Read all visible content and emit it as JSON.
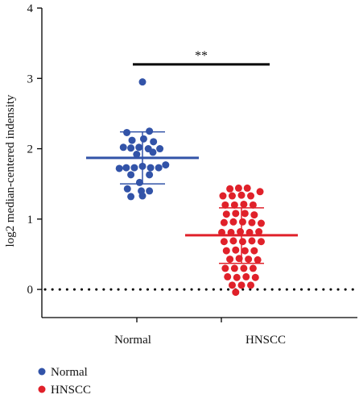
{
  "chart_data": {
    "type": "scatter",
    "ylabel": "log2 median-centered indensity",
    "ylim": [
      -0.4,
      4
    ],
    "yticks": [
      0,
      1,
      2,
      3,
      4
    ],
    "categories": [
      "Normal",
      "HNSCC"
    ],
    "reference_line": 0,
    "significance": {
      "label": "**",
      "between": [
        "Normal",
        "HNSCC"
      ],
      "y": 3.2
    },
    "legend": {
      "placement": "bottom-left",
      "items": [
        "Normal",
        "HNSCC"
      ]
    },
    "colors": {
      "Normal": "#3253a8",
      "HNSCC": "#e0212a",
      "axis": "#000000"
    },
    "series": [
      {
        "name": "Normal",
        "mean": 1.87,
        "sd_low": 1.5,
        "sd_high": 2.24,
        "points": [
          {
            "x": 0.0,
            "y": 2.95
          },
          {
            "x": -0.27,
            "y": 2.23
          },
          {
            "x": 0.12,
            "y": 2.25
          },
          {
            "x": -0.18,
            "y": 2.12
          },
          {
            "x": 0.02,
            "y": 2.14
          },
          {
            "x": 0.19,
            "y": 2.1
          },
          {
            "x": -0.33,
            "y": 2.02
          },
          {
            "x": -0.2,
            "y": 2.01
          },
          {
            "x": -0.06,
            "y": 2.02
          },
          {
            "x": 0.1,
            "y": 2.0
          },
          {
            "x": 0.3,
            "y": 2.0
          },
          {
            "x": -0.1,
            "y": 1.92
          },
          {
            "x": 0.18,
            "y": 1.95
          },
          {
            "x": -0.4,
            "y": 1.72
          },
          {
            "x": -0.28,
            "y": 1.73
          },
          {
            "x": -0.14,
            "y": 1.73
          },
          {
            "x": 0.0,
            "y": 1.75
          },
          {
            "x": 0.14,
            "y": 1.73
          },
          {
            "x": 0.28,
            "y": 1.73
          },
          {
            "x": 0.4,
            "y": 1.77
          },
          {
            "x": -0.2,
            "y": 1.63
          },
          {
            "x": 0.12,
            "y": 1.63
          },
          {
            "x": -0.05,
            "y": 1.52
          },
          {
            "x": -0.26,
            "y": 1.43
          },
          {
            "x": -0.02,
            "y": 1.4
          },
          {
            "x": 0.12,
            "y": 1.4
          },
          {
            "x": -0.2,
            "y": 1.32
          },
          {
            "x": 0.0,
            "y": 1.33
          }
        ]
      },
      {
        "name": "HNSCC",
        "mean": 0.77,
        "sd_low": 0.37,
        "sd_high": 1.16,
        "points": [
          {
            "x": -0.2,
            "y": 1.43
          },
          {
            "x": -0.05,
            "y": 1.44
          },
          {
            "x": 0.1,
            "y": 1.44
          },
          {
            "x": 0.32,
            "y": 1.39
          },
          {
            "x": -0.32,
            "y": 1.33
          },
          {
            "x": -0.16,
            "y": 1.33
          },
          {
            "x": 0.0,
            "y": 1.34
          },
          {
            "x": 0.16,
            "y": 1.33
          },
          {
            "x": -0.28,
            "y": 1.2
          },
          {
            "x": -0.12,
            "y": 1.2
          },
          {
            "x": 0.04,
            "y": 1.21
          },
          {
            "x": 0.2,
            "y": 1.2
          },
          {
            "x": -0.26,
            "y": 1.07
          },
          {
            "x": -0.1,
            "y": 1.08
          },
          {
            "x": 0.06,
            "y": 1.08
          },
          {
            "x": 0.22,
            "y": 1.06
          },
          {
            "x": -0.3,
            "y": 0.95
          },
          {
            "x": -0.14,
            "y": 0.96
          },
          {
            "x": 0.02,
            "y": 0.96
          },
          {
            "x": 0.18,
            "y": 0.95
          },
          {
            "x": 0.34,
            "y": 0.94
          },
          {
            "x": -0.34,
            "y": 0.81
          },
          {
            "x": -0.18,
            "y": 0.81
          },
          {
            "x": -0.02,
            "y": 0.82
          },
          {
            "x": 0.14,
            "y": 0.81
          },
          {
            "x": 0.3,
            "y": 0.82
          },
          {
            "x": -0.3,
            "y": 0.68
          },
          {
            "x": -0.14,
            "y": 0.69
          },
          {
            "x": 0.02,
            "y": 0.68
          },
          {
            "x": 0.18,
            "y": 0.69
          },
          {
            "x": 0.34,
            "y": 0.68
          },
          {
            "x": -0.26,
            "y": 0.55
          },
          {
            "x": -0.1,
            "y": 0.56
          },
          {
            "x": 0.06,
            "y": 0.55
          },
          {
            "x": 0.22,
            "y": 0.55
          },
          {
            "x": -0.2,
            "y": 0.43
          },
          {
            "x": -0.04,
            "y": 0.44
          },
          {
            "x": 0.12,
            "y": 0.43
          },
          {
            "x": 0.28,
            "y": 0.42
          },
          {
            "x": -0.28,
            "y": 0.3
          },
          {
            "x": -0.12,
            "y": 0.3
          },
          {
            "x": 0.04,
            "y": 0.3
          },
          {
            "x": 0.2,
            "y": 0.3
          },
          {
            "x": -0.24,
            "y": 0.18
          },
          {
            "x": -0.08,
            "y": 0.17
          },
          {
            "x": 0.08,
            "y": 0.18
          },
          {
            "x": 0.24,
            "y": 0.17
          },
          {
            "x": -0.16,
            "y": 0.06
          },
          {
            "x": 0.0,
            "y": 0.06
          },
          {
            "x": 0.16,
            "y": 0.06
          },
          {
            "x": -0.1,
            "y": -0.04
          }
        ]
      }
    ]
  }
}
